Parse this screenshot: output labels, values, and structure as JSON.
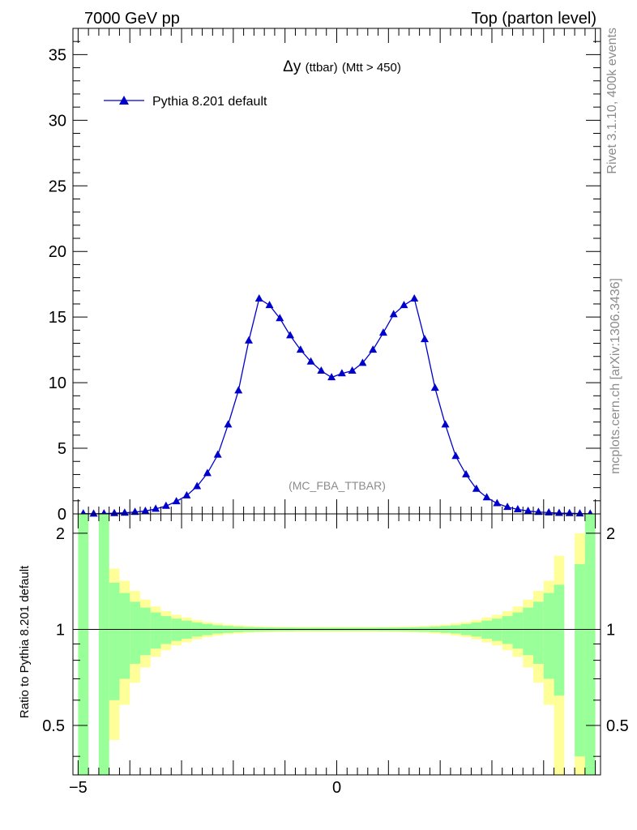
{
  "header": {
    "left": "7000 GeV pp",
    "right": "Top (parton level)"
  },
  "side_labels": {
    "rivet": "Rivet 3.1.10,  400k events",
    "mcplots": "mcplots.cern.ch [arXiv:1306.3436]"
  },
  "chart_data": {
    "type": "line",
    "title": "Δy (ttbar) (Mtt > 450)",
    "title_parts": {
      "main": "Δy",
      "small": "(ttbar)",
      "rest": "(Mtt > 450)"
    },
    "watermark": "(MC_FBA_TTBAR)",
    "xlabel": "",
    "ylabel_ratio": "Ratio to Pythia 8.201 default",
    "xlim": [
      -5.1,
      5.1
    ],
    "ylim_main": [
      0,
      37
    ],
    "ylim_ratio": [
      0.35,
      2.3
    ],
    "main_y_ticks": [
      0,
      5,
      10,
      15,
      20,
      25,
      30,
      35
    ],
    "x_ticks": [
      -5,
      0
    ],
    "ratio_y_ticks": [
      0.5,
      1,
      2
    ],
    "ratio_y_tick_labels": [
      "0.5",
      "1",
      "2"
    ],
    "legend": {
      "position": "top-left",
      "entry": "Pythia 8.201 default",
      "color": "#0000cc",
      "marker": "triangle"
    },
    "series": [
      {
        "name": "Pythia 8.201 default",
        "color": "#0000cc",
        "x": [
          -4.9,
          -4.7,
          -4.5,
          -4.3,
          -4.1,
          -3.9,
          -3.7,
          -3.5,
          -3.3,
          -3.1,
          -2.9,
          -2.7,
          -2.5,
          -2.3,
          -2.1,
          -1.9,
          -1.7,
          -1.5,
          -1.3,
          -1.1,
          -0.9,
          -0.7,
          -0.5,
          -0.3,
          -0.1,
          0.1,
          0.3,
          0.5,
          0.7,
          0.9,
          1.1,
          1.3,
          1.5,
          1.7,
          1.9,
          2.1,
          2.3,
          2.5,
          2.7,
          2.9,
          3.1,
          3.3,
          3.5,
          3.7,
          3.9,
          4.1,
          4.3,
          4.5,
          4.7,
          4.9
        ],
        "y": [
          0.02,
          0.01,
          0.02,
          0.05,
          0.08,
          0.14,
          0.22,
          0.38,
          0.6,
          0.95,
          1.4,
          2.1,
          3.1,
          4.5,
          6.8,
          9.4,
          13.2,
          16.4,
          15.9,
          14.9,
          13.6,
          12.5,
          11.6,
          10.9,
          10.4,
          10.7,
          10.9,
          11.5,
          12.5,
          13.8,
          15.2,
          15.9,
          16.4,
          13.3,
          9.6,
          6.8,
          4.4,
          3.0,
          1.9,
          1.25,
          0.8,
          0.52,
          0.34,
          0.22,
          0.14,
          0.1,
          0.06,
          0.05,
          0.02,
          0.01
        ]
      }
    ],
    "ratio_bands": {
      "bin_edges": [
        -5.0,
        -4.8,
        -4.6,
        -4.4,
        -4.2,
        -4.0,
        -3.8,
        -3.6,
        -3.4,
        -3.2,
        -3.0,
        -2.8,
        -2.6,
        -2.4,
        -2.2,
        -2.0,
        -1.8,
        -1.6,
        -1.4,
        -1.2,
        -1.0,
        -0.8,
        -0.6,
        -0.4,
        -0.2,
        0.0,
        0.2,
        0.4,
        0.6,
        0.8,
        1.0,
        1.2,
        1.4,
        1.6,
        1.8,
        2.0,
        2.2,
        2.4,
        2.6,
        2.8,
        3.0,
        3.2,
        3.4,
        3.6,
        3.8,
        4.0,
        4.2,
        4.4,
        4.6,
        4.8,
        5.0
      ],
      "stat_half_width": [
        2.5,
        null,
        2.5,
        0.4,
        0.3,
        0.22,
        0.17,
        0.13,
        0.1,
        0.08,
        0.065,
        0.05,
        0.04,
        0.03,
        0.025,
        0.02,
        0.017,
        0.015,
        0.014,
        0.013,
        0.013,
        0.012,
        0.012,
        0.012,
        0.012,
        0.012,
        0.012,
        0.012,
        0.012,
        0.013,
        0.013,
        0.014,
        0.015,
        0.017,
        0.02,
        0.025,
        0.03,
        0.04,
        0.05,
        0.065,
        0.08,
        0.1,
        0.13,
        0.17,
        0.22,
        0.3,
        0.38,
        null,
        0.6,
        2.5
      ],
      "total_half_width": [
        2.5,
        null,
        2.5,
        0.55,
        0.42,
        0.32,
        0.24,
        0.18,
        0.14,
        0.11,
        0.09,
        0.07,
        0.055,
        0.045,
        0.035,
        0.03,
        0.025,
        0.022,
        0.02,
        0.019,
        0.018,
        0.018,
        0.018,
        0.018,
        0.018,
        0.018,
        0.018,
        0.018,
        0.018,
        0.018,
        0.019,
        0.02,
        0.022,
        0.025,
        0.03,
        0.035,
        0.045,
        0.055,
        0.07,
        0.09,
        0.11,
        0.14,
        0.18,
        0.24,
        0.32,
        0.42,
        0.7,
        null,
        1.0,
        2.5
      ],
      "stat_color": "#99ff99",
      "total_color": "#ffff99"
    }
  }
}
